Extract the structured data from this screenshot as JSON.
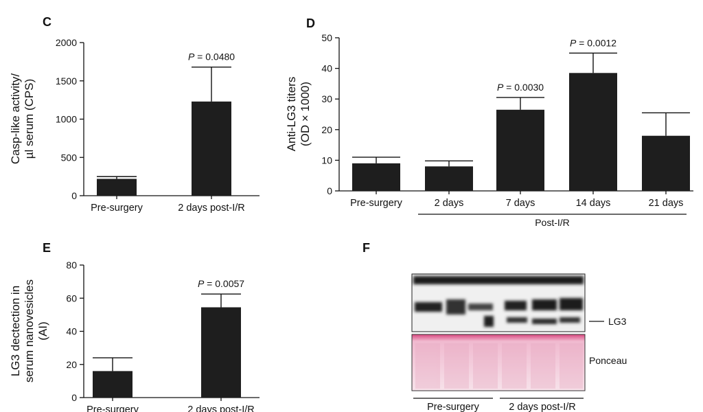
{
  "panels": {
    "C": "C",
    "D": "D",
    "E": "E",
    "F": "F"
  },
  "chart_data": [
    {
      "panel": "C",
      "type": "bar",
      "categories": [
        "Pre-surgery",
        "2 days post-I/R"
      ],
      "values": [
        220,
        1230
      ],
      "errors": [
        30,
        450
      ],
      "ylabel_lines": [
        "Casp-like activity/",
        "µl serum (CPS)"
      ],
      "yticks": [
        0,
        500,
        1000,
        1500,
        2000
      ],
      "ylim": [
        0,
        2000
      ],
      "annotations": [
        {
          "category": "2 days post-I/R",
          "text": "P = 0.0480"
        }
      ]
    },
    {
      "panel": "D",
      "type": "bar",
      "categories": [
        "Pre-surgery",
        "2 days",
        "7 days",
        "14 days",
        "21 days"
      ],
      "values": [
        9,
        8,
        26.5,
        38.5,
        18
      ],
      "errors": [
        2,
        1.8,
        4,
        6.5,
        7.5
      ],
      "ylabel_lines": [
        "Anti-LG3 titers",
        "(OD × 1000)"
      ],
      "yticks": [
        0,
        10,
        20,
        30,
        40,
        50
      ],
      "ylim": [
        0,
        50
      ],
      "group_label": "Post-I/R",
      "annotations": [
        {
          "category": "7 days",
          "text": "P = 0.0030"
        },
        {
          "category": "14 days",
          "text": "P = 0.0012"
        }
      ]
    },
    {
      "panel": "E",
      "type": "bar",
      "categories": [
        "Pre-surgery",
        "2 days post-I/R"
      ],
      "values": [
        16,
        54.5
      ],
      "errors": [
        8,
        8
      ],
      "ylabel_lines": [
        "LG3 dectection in",
        "serum nanovesicles",
        "(AI)"
      ],
      "yticks": [
        0,
        20,
        40,
        60,
        80
      ],
      "ylim": [
        0,
        80
      ],
      "annotations": [
        {
          "category": "2 days post-I/R",
          "text": "P = 0.0057"
        }
      ]
    }
  ],
  "blot": {
    "lane_groups": [
      "Pre-surgery",
      "2 days post-I/R"
    ],
    "band_labels": [
      "LG3",
      "Ponceau"
    ],
    "colors": {
      "blot_bg": "#f2f2f2",
      "blot_dark": "#111111",
      "ponceau": "#f3cfdd",
      "ponceau_band": "#d9487f"
    }
  }
}
